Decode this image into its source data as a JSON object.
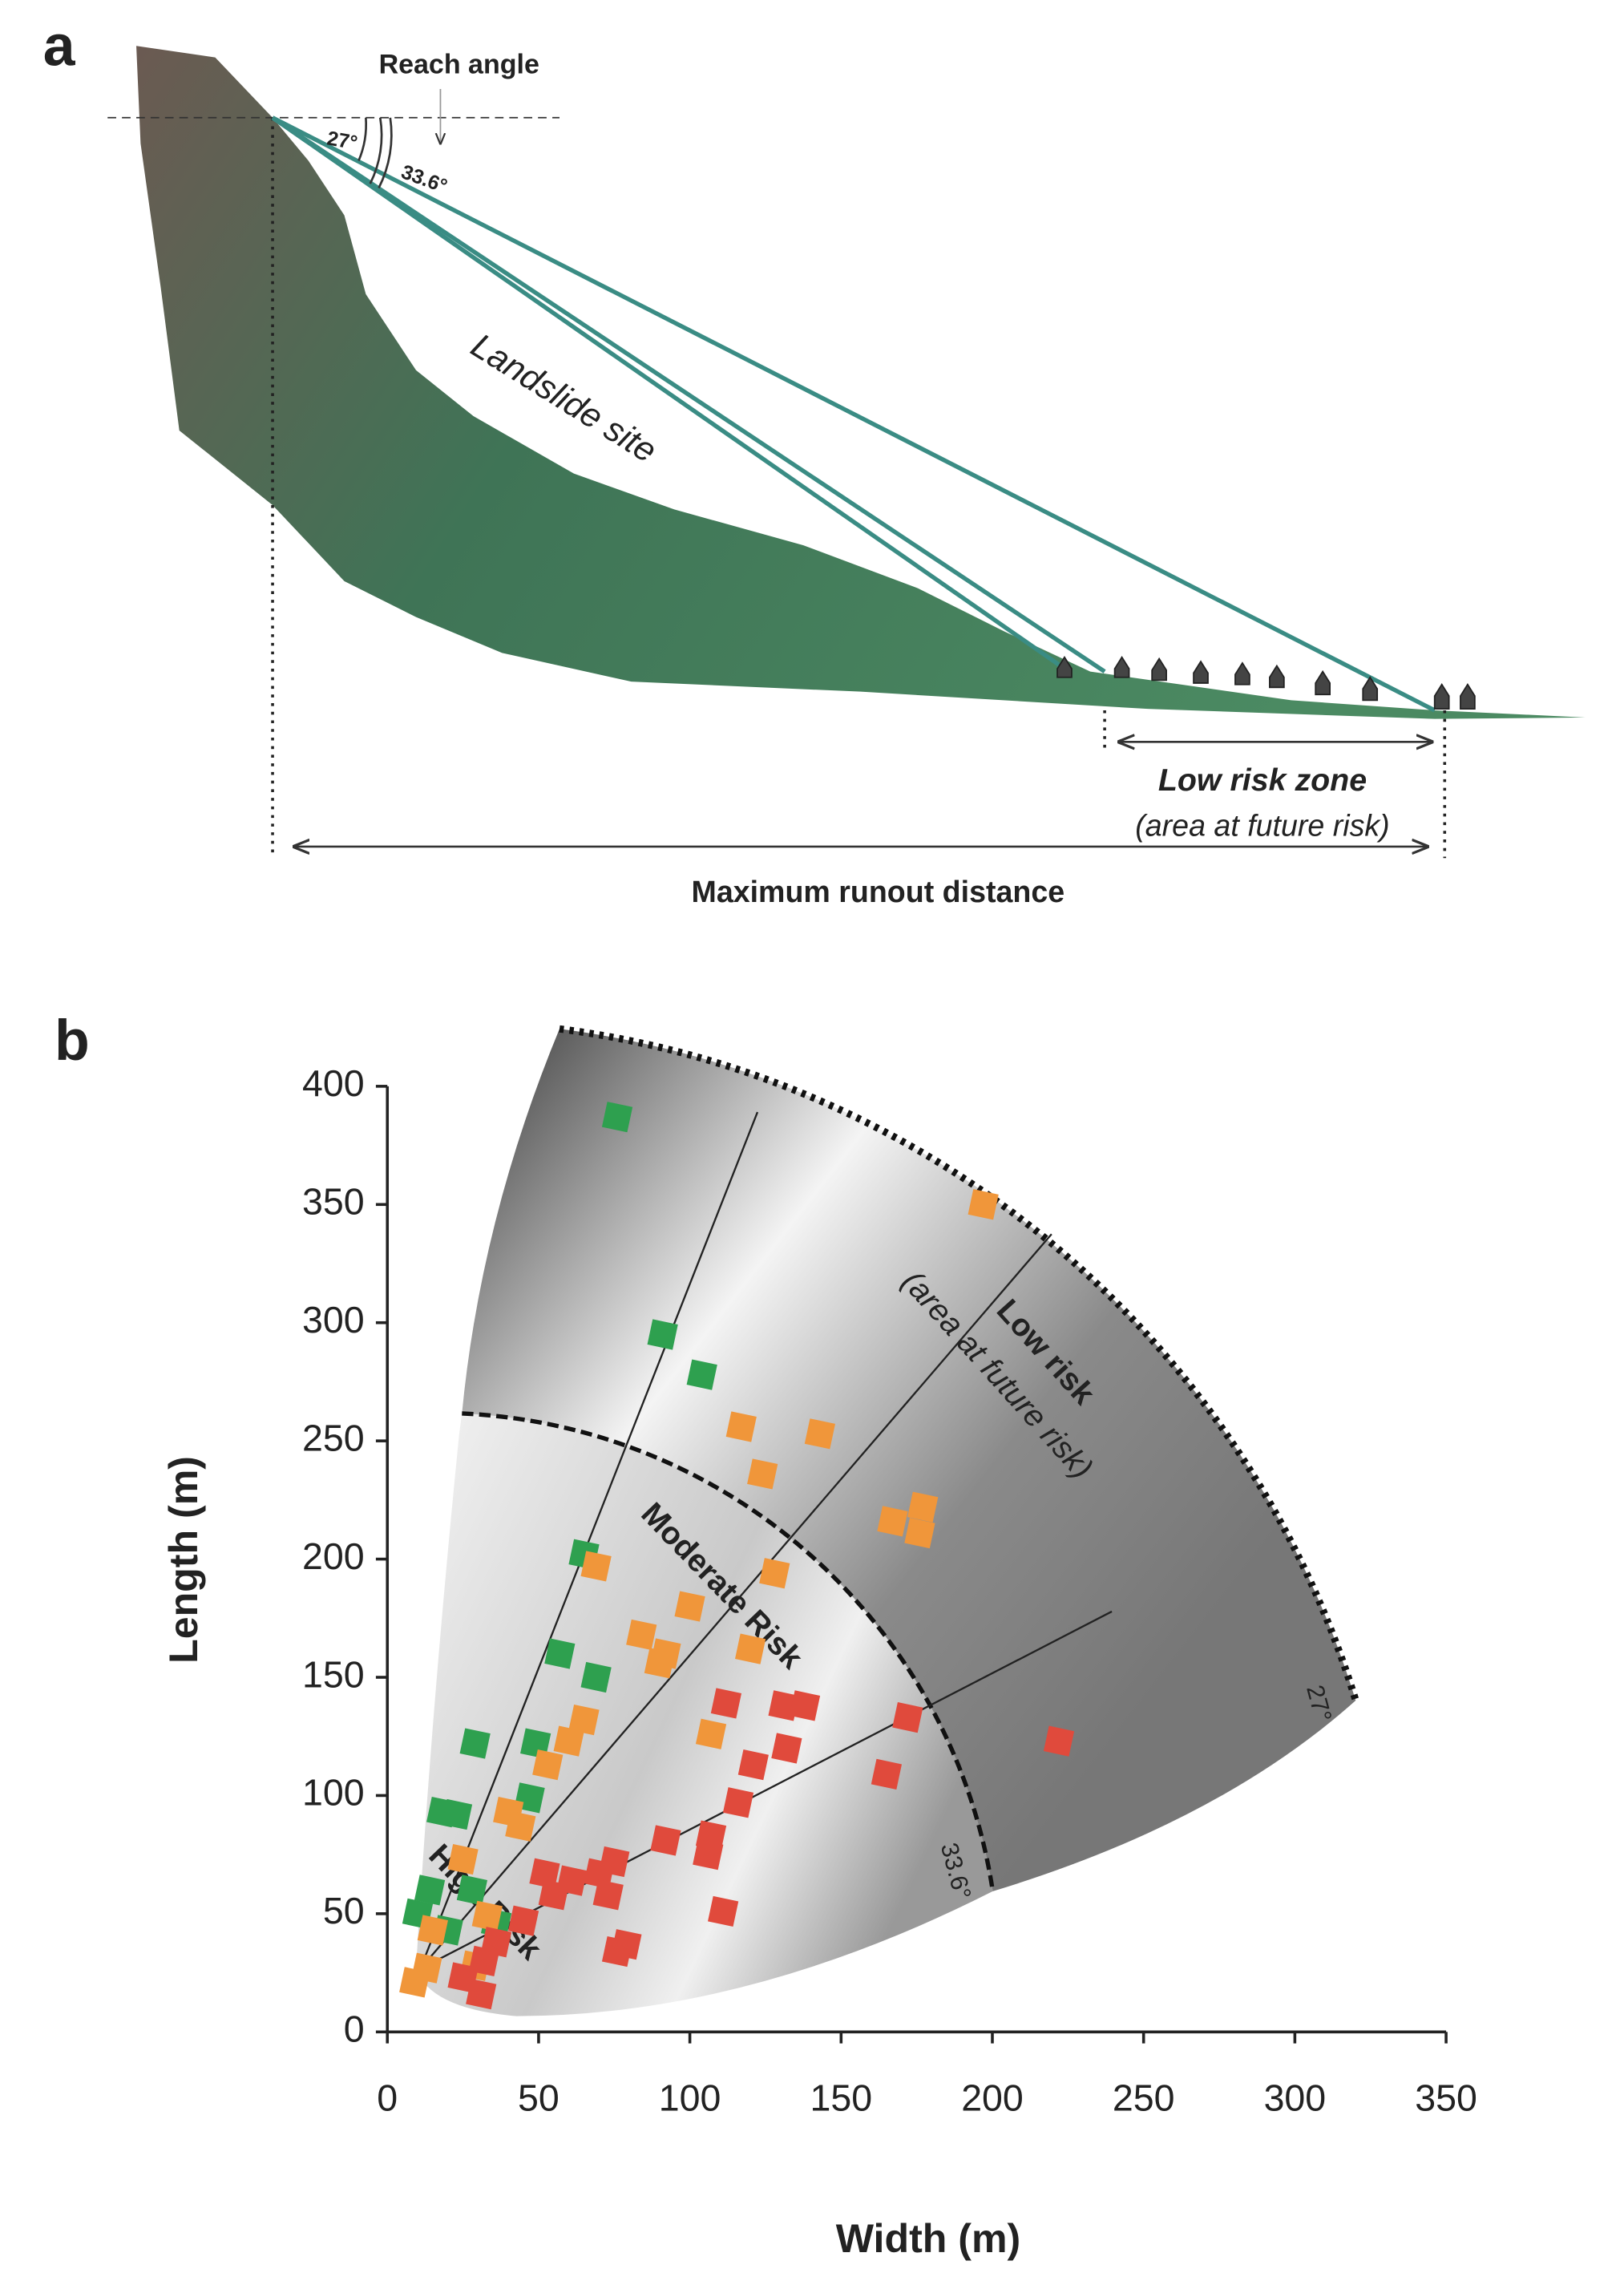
{
  "panel_a": {
    "label": "a",
    "reach_angle": "Reach angle",
    "angle_small": "27°",
    "angle_large": "33.6°",
    "site": "Landslide site",
    "zone_title": "Low risk zone",
    "zone_note": "(area at future risk)",
    "runout": "Maximum runout distance"
  },
  "chart_data": {
    "type": "scatter",
    "label": "b",
    "x_label": "Width (m)",
    "y_label": "Length (m)",
    "xlim": [
      0,
      350
    ],
    "xticks": [
      0,
      50,
      100,
      150,
      200,
      250,
      300,
      350
    ],
    "ylim": [
      0,
      400
    ],
    "yticks": [
      0,
      50,
      100,
      150,
      200,
      250,
      300,
      350,
      400
    ],
    "annotations": {
      "low_risk": "Low risk",
      "low_risk_note": "(area at future risk)",
      "moderate": "Moderate Risk",
      "high": "High Risk",
      "angle_inner": "33.6°",
      "angle_outer": "27°"
    },
    "series": [
      {
        "color": "#2ea04f",
        "x": [
          76,
          91,
          104,
          65,
          57,
          69,
          29,
          49,
          47,
          18,
          23,
          10,
          36,
          14,
          28,
          20
        ],
        "y": [
          387,
          295,
          278,
          202,
          160,
          150,
          122,
          122,
          99,
          93,
          92,
          50,
          46,
          60,
          60,
          43
        ]
      },
      {
        "color": "#f0963a",
        "x": [
          197,
          117,
          143,
          124,
          167,
          177,
          176,
          128,
          69,
          100,
          84,
          92,
          90,
          120,
          107,
          65,
          60,
          53,
          40,
          44,
          25,
          15,
          33,
          9,
          13,
          29
        ],
        "y": [
          350,
          256,
          253,
          236,
          216,
          222,
          211,
          194,
          197,
          180,
          168,
          160,
          156,
          162,
          126,
          132,
          123,
          113,
          93,
          87,
          73,
          43,
          49,
          21,
          27,
          28
        ]
      },
      {
        "color": "#e04a3c",
        "x": [
          112,
          131,
          138,
          132,
          121,
          172,
          165,
          116,
          92,
          107,
          106,
          111,
          75,
          70,
          52,
          55,
          73,
          45,
          79,
          76,
          36,
          32,
          25,
          31,
          222,
          61
        ],
        "y": [
          139,
          138,
          138,
          120,
          113,
          133,
          109,
          97,
          81,
          83,
          75,
          51,
          72,
          67,
          67,
          58,
          58,
          47,
          37,
          34,
          38,
          30,
          23,
          16,
          123,
          64
        ]
      }
    ]
  }
}
